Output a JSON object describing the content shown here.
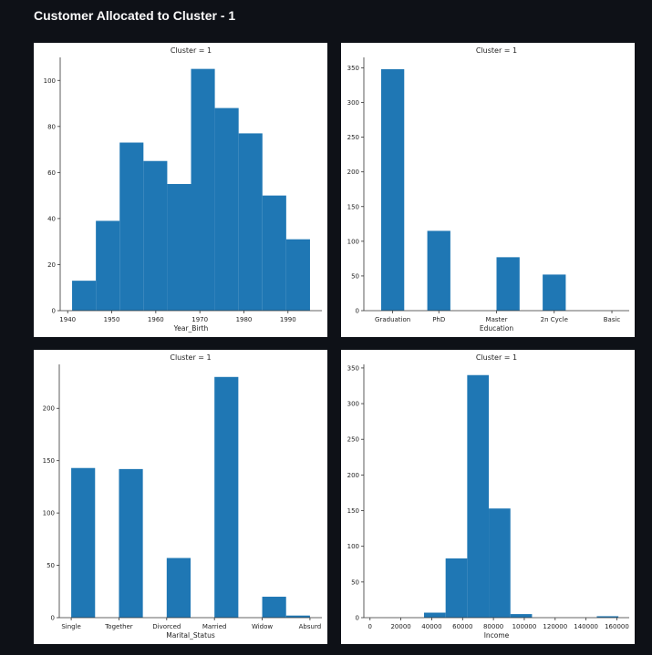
{
  "page": {
    "title": "Customer Allocated to Cluster - 1"
  },
  "colors": {
    "bar": "#1f77b4",
    "axis": "#333333",
    "background": "#0e1117"
  },
  "chart_data": [
    {
      "type": "bar",
      "histogram": true,
      "title": "Cluster = 1",
      "xlabel": "Year_Birth",
      "ylabel": "",
      "bins": [
        {
          "start": 1941.0,
          "end": 1946.4,
          "value": 13
        },
        {
          "start": 1946.4,
          "end": 1951.8,
          "value": 39
        },
        {
          "start": 1951.8,
          "end": 1957.2,
          "value": 73
        },
        {
          "start": 1957.2,
          "end": 1962.6,
          "value": 65
        },
        {
          "start": 1962.6,
          "end": 1968.0,
          "value": 55
        },
        {
          "start": 1968.0,
          "end": 1973.4,
          "value": 105
        },
        {
          "start": 1973.4,
          "end": 1978.8,
          "value": 88
        },
        {
          "start": 1978.8,
          "end": 1984.2,
          "value": 77
        },
        {
          "start": 1984.2,
          "end": 1989.6,
          "value": 50
        },
        {
          "start": 1989.6,
          "end": 1995.0,
          "value": 31
        }
      ],
      "xlim": [
        1938.3,
        1997.7
      ],
      "ylim": [
        0,
        110
      ],
      "xticks": [
        1940,
        1950,
        1960,
        1970,
        1980,
        1990
      ],
      "yticks": [
        0,
        20,
        40,
        60,
        80,
        100
      ]
    },
    {
      "type": "bar",
      "histogram": true,
      "title": "Cluster = 1",
      "xlabel": "Education",
      "ylabel": "",
      "bins": [
        {
          "start": 0.0,
          "end": 0.4,
          "value": 348
        },
        {
          "start": 0.4,
          "end": 0.8,
          "value": 0
        },
        {
          "start": 0.8,
          "end": 1.2,
          "value": 115
        },
        {
          "start": 1.2,
          "end": 1.6,
          "value": 0
        },
        {
          "start": 1.6,
          "end": 2.0,
          "value": 0
        },
        {
          "start": 2.0,
          "end": 2.4,
          "value": 77
        },
        {
          "start": 2.4,
          "end": 2.8,
          "value": 0
        },
        {
          "start": 2.8,
          "end": 3.2,
          "value": 52
        },
        {
          "start": 3.2,
          "end": 3.6,
          "value": 0
        },
        {
          "start": 3.6,
          "end": 4.0,
          "value": 0
        }
      ],
      "xlim": [
        -0.3,
        4.3
      ],
      "ylim": [
        0,
        365
      ],
      "xticks": [
        0.2,
        1.0,
        2.0,
        3.0,
        4.0
      ],
      "xticklabels": [
        "Graduation",
        "PhD",
        "Master",
        "2n Cycle",
        "Basic"
      ],
      "yticks": [
        0,
        50,
        100,
        150,
        200,
        250,
        300,
        350
      ]
    },
    {
      "type": "bar",
      "histogram": true,
      "title": "Cluster = 1",
      "xlabel": "Marital_Status",
      "ylabel": "",
      "bins": [
        {
          "start": 0.0,
          "end": 0.5,
          "value": 143
        },
        {
          "start": 0.5,
          "end": 1.0,
          "value": 0
        },
        {
          "start": 1.0,
          "end": 1.5,
          "value": 142
        },
        {
          "start": 1.5,
          "end": 2.0,
          "value": 0
        },
        {
          "start": 2.0,
          "end": 2.5,
          "value": 57
        },
        {
          "start": 2.5,
          "end": 3.0,
          "value": 0
        },
        {
          "start": 3.0,
          "end": 3.5,
          "value": 230
        },
        {
          "start": 3.5,
          "end": 4.0,
          "value": 0
        },
        {
          "start": 4.0,
          "end": 4.5,
          "value": 20
        },
        {
          "start": 4.5,
          "end": 5.0,
          "value": 2
        }
      ],
      "xlim": [
        -0.25,
        5.25
      ],
      "ylim": [
        0,
        242
      ],
      "xticks": [
        0,
        1,
        2,
        3,
        4,
        5
      ],
      "xticklabels": [
        "Single",
        "Together",
        "Divorced",
        "Married",
        "Widow",
        "Absurd"
      ],
      "yticks": [
        0,
        50,
        100,
        150,
        200
      ]
    },
    {
      "type": "bar",
      "histogram": true,
      "title": "Cluster = 1",
      "xlabel": "Income",
      "ylabel": "",
      "bins": [
        {
          "start": 21000,
          "end": 35000,
          "value": 0
        },
        {
          "start": 35000,
          "end": 49000,
          "value": 7
        },
        {
          "start": 49000,
          "end": 63000,
          "value": 83
        },
        {
          "start": 63000,
          "end": 77000,
          "value": 340
        },
        {
          "start": 77000,
          "end": 91000,
          "value": 153
        },
        {
          "start": 91000,
          "end": 105000,
          "value": 5
        },
        {
          "start": 105000,
          "end": 119000,
          "value": 0
        },
        {
          "start": 119000,
          "end": 133000,
          "value": 0
        },
        {
          "start": 133000,
          "end": 147000,
          "value": 0
        },
        {
          "start": 147000,
          "end": 161000,
          "value": 2
        }
      ],
      "xlim": [
        -4000,
        168000
      ],
      "ylim": [
        0,
        355
      ],
      "xticks": [
        0,
        20000,
        40000,
        60000,
        80000,
        100000,
        120000,
        140000,
        160000
      ],
      "yticks": [
        0,
        50,
        100,
        150,
        200,
        250,
        300,
        350
      ]
    }
  ]
}
